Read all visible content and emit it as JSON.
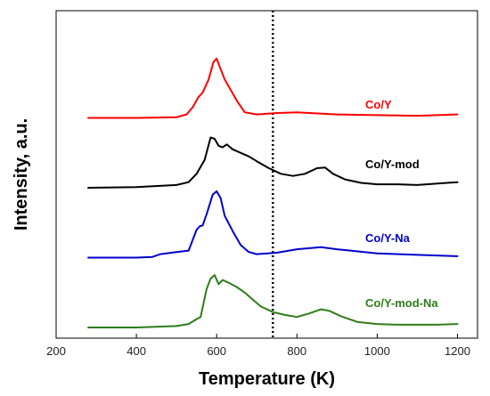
{
  "chart_data": {
    "type": "line",
    "title": "",
    "xlabel": "Temperature (K)",
    "ylabel": "Intensity, a.u.",
    "xlim": [
      200,
      1250
    ],
    "x_ticks": [
      200,
      400,
      600,
      800,
      1000,
      1200
    ],
    "y_ticks_shown": false,
    "grid": false,
    "reference_line": {
      "x": 740,
      "style": "dotted"
    },
    "series": [
      {
        "name": "Co/Y",
        "color": "#ff0000",
        "offset": 3.0,
        "x": [
          280,
          400,
          500,
          525,
          540,
          555,
          565,
          580,
          592,
          600,
          610,
          620,
          635,
          650,
          670,
          700,
          750,
          800,
          900,
          1000,
          1100,
          1200
        ],
        "y": [
          0.0,
          0.0,
          0.01,
          0.05,
          0.15,
          0.3,
          0.36,
          0.55,
          0.8,
          0.85,
          0.7,
          0.55,
          0.4,
          0.25,
          0.08,
          0.05,
          0.07,
          0.08,
          0.05,
          0.04,
          0.03,
          0.05
        ]
      },
      {
        "name": "Co/Y-mod",
        "color": "#000000",
        "offset": 2.0,
        "x": [
          280,
          400,
          500,
          530,
          550,
          570,
          585,
          595,
          605,
          615,
          625,
          640,
          660,
          680,
          700,
          730,
          760,
          790,
          820,
          850,
          870,
          890,
          920,
          960,
          1000,
          1050,
          1100,
          1150,
          1200
        ],
        "y": [
          0.0,
          0.01,
          0.04,
          0.08,
          0.2,
          0.4,
          0.72,
          0.7,
          0.6,
          0.58,
          0.62,
          0.55,
          0.5,
          0.45,
          0.38,
          0.28,
          0.2,
          0.17,
          0.2,
          0.28,
          0.29,
          0.2,
          0.12,
          0.07,
          0.05,
          0.05,
          0.04,
          0.06,
          0.08
        ]
      },
      {
        "name": "Co/Y-Na",
        "color": "#0000cc",
        "offset": 1.0,
        "x": [
          280,
          400,
          440,
          460,
          500,
          530,
          550,
          558,
          565,
          575,
          590,
          600,
          610,
          620,
          640,
          660,
          680,
          700,
          750,
          800,
          860,
          900,
          1000,
          1100,
          1200
        ],
        "y": [
          0.0,
          0.0,
          0.01,
          0.05,
          0.08,
          0.1,
          0.4,
          0.45,
          0.46,
          0.62,
          0.9,
          0.95,
          0.85,
          0.6,
          0.38,
          0.18,
          0.08,
          0.05,
          0.07,
          0.12,
          0.15,
          0.12,
          0.06,
          0.04,
          0.02
        ]
      },
      {
        "name": "Co/Y-mod-Na",
        "color": "#2e7d1a",
        "offset": 0.0,
        "x": [
          280,
          400,
          500,
          530,
          550,
          560,
          575,
          585,
          595,
          605,
          615,
          630,
          650,
          670,
          690,
          710,
          740,
          770,
          800,
          830,
          860,
          880,
          910,
          950,
          1000,
          1050,
          1100,
          1150,
          1200
        ],
        "y": [
          0.0,
          0.0,
          0.02,
          0.05,
          0.12,
          0.15,
          0.55,
          0.7,
          0.75,
          0.62,
          0.68,
          0.64,
          0.58,
          0.5,
          0.4,
          0.3,
          0.22,
          0.18,
          0.15,
          0.2,
          0.26,
          0.24,
          0.16,
          0.08,
          0.05,
          0.04,
          0.04,
          0.04,
          0.05
        ]
      }
    ]
  }
}
